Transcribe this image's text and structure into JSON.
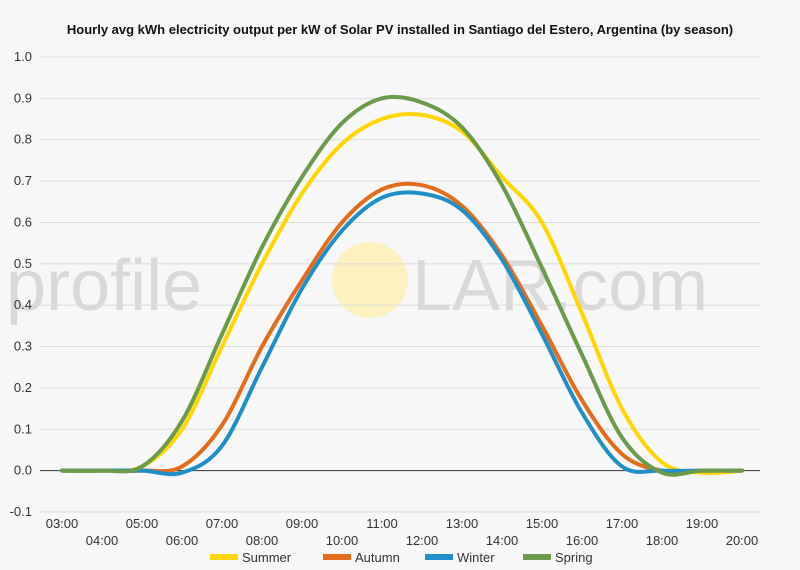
{
  "chart_data": {
    "type": "line",
    "title": "Hourly avg kWh electricity output per kW of Solar PV installed in Santiago del Estero, Argentina (by season)",
    "watermark": {
      "left": "profile",
      "right": "LAR.com"
    },
    "x": [
      "03:00",
      "04:00",
      "05:00",
      "06:00",
      "07:00",
      "08:00",
      "09:00",
      "10:00",
      "11:00",
      "12:00",
      "13:00",
      "14:00",
      "15:00",
      "16:00",
      "17:00",
      "18:00",
      "19:00",
      "20:00"
    ],
    "y_ticks": [
      "-0.1",
      "0.0",
      "0.1",
      "0.2",
      "0.3",
      "0.4",
      "0.5",
      "0.6",
      "0.7",
      "0.8",
      "0.9",
      "1.0"
    ],
    "ylim": [
      -0.1,
      1.0
    ],
    "grid": true,
    "legend_position": "bottom",
    "series": [
      {
        "name": "Summer",
        "color": "#ffd700",
        "values": [
          0,
          0,
          0.01,
          0.1,
          0.3,
          0.5,
          0.67,
          0.79,
          0.85,
          0.86,
          0.82,
          0.71,
          0.6,
          0.38,
          0.15,
          0.02,
          -0.005,
          0
        ]
      },
      {
        "name": "Autumn",
        "color": "#e36c1d",
        "values": [
          0,
          0,
          0,
          0.01,
          0.11,
          0.3,
          0.46,
          0.6,
          0.68,
          0.69,
          0.64,
          0.52,
          0.35,
          0.17,
          0.04,
          0,
          0,
          0
        ]
      },
      {
        "name": "Winter",
        "color": "#1f8fc5",
        "values": [
          0,
          0,
          0,
          -0.005,
          0.06,
          0.25,
          0.44,
          0.58,
          0.66,
          0.67,
          0.63,
          0.51,
          0.33,
          0.14,
          0.01,
          0,
          0,
          0
        ]
      },
      {
        "name": "Spring",
        "color": "#6a9a4a",
        "values": [
          0,
          0,
          0.01,
          0.12,
          0.33,
          0.54,
          0.71,
          0.84,
          0.9,
          0.89,
          0.83,
          0.69,
          0.49,
          0.28,
          0.08,
          -0.005,
          0,
          0
        ]
      }
    ]
  }
}
